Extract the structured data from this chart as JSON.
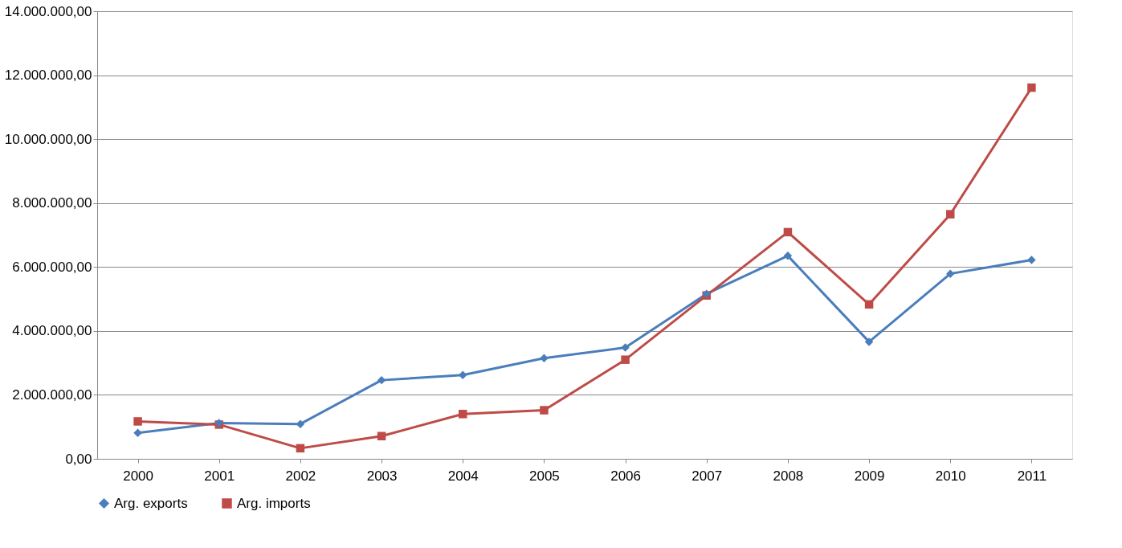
{
  "chart_data": {
    "type": "line",
    "categories": [
      "2000",
      "2001",
      "2002",
      "2003",
      "2004",
      "2005",
      "2006",
      "2007",
      "2008",
      "2009",
      "2010",
      "2011"
    ],
    "series": [
      {
        "name": "Arg. exports",
        "color": "#4a7ebb",
        "marker": "diamond",
        "values": [
          810000,
          1120000,
          1090000,
          2460000,
          2620000,
          3150000,
          3480000,
          5160000,
          6350000,
          3660000,
          5790000,
          6220000
        ]
      },
      {
        "name": "Arg. imports",
        "color": "#be4b48",
        "marker": "square",
        "values": [
          1170000,
          1070000,
          330000,
          710000,
          1400000,
          1520000,
          3100000,
          5110000,
          7090000,
          4830000,
          7650000,
          11610000
        ]
      }
    ],
    "ylim": [
      0,
      14000000
    ],
    "yticks": [
      {
        "value": 0,
        "label": "0,00"
      },
      {
        "value": 2000000,
        "label": "2.000.000,00"
      },
      {
        "value": 4000000,
        "label": "4.000.000,00"
      },
      {
        "value": 6000000,
        "label": "6.000.000,00"
      },
      {
        "value": 8000000,
        "label": "8.000.000,00"
      },
      {
        "value": 10000000,
        "label": "10.000.000,00"
      },
      {
        "value": 12000000,
        "label": "12.000.000,00"
      },
      {
        "value": 14000000,
        "label": "14.000.000,00"
      }
    ],
    "grid": "y",
    "legend": "bottom",
    "line_style": "solid"
  }
}
